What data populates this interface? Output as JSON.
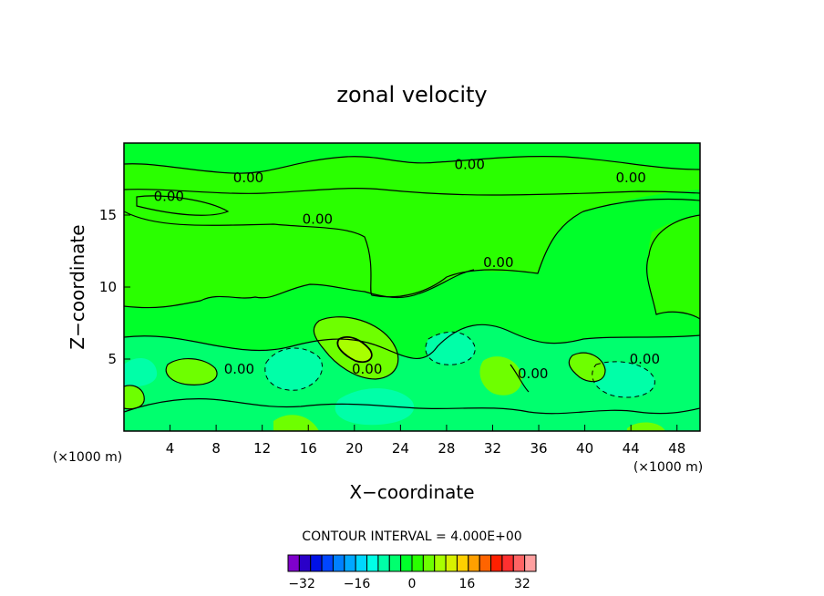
{
  "chart_data": {
    "type": "heatmap",
    "title": "zonal velocity",
    "xlabel": "X−coordinate",
    "ylabel": "Z−coordinate",
    "x_scale_label": "(×1000 m)",
    "y_scale_label": "(×1000 m)",
    "xlim": [
      0,
      50
    ],
    "ylim": [
      0,
      20
    ],
    "x_ticks": [
      4,
      8,
      12,
      16,
      20,
      24,
      28,
      32,
      36,
      40,
      44,
      48
    ],
    "y_ticks": [
      5,
      10,
      15
    ],
    "contour_interval_text": "CONTOUR INTERVAL = 4.000E+00",
    "contour_labels": [
      {
        "text": "0.00",
        "x": 10.8,
        "y": 17.6
      },
      {
        "text": "0.00",
        "x": 3.9,
        "y": 16.3
      },
      {
        "text": "0.00",
        "x": 16.8,
        "y": 14.7
      },
      {
        "text": "0.00",
        "x": 30.0,
        "y": 18.5
      },
      {
        "text": "0.00",
        "x": 44.0,
        "y": 17.6
      },
      {
        "text": "0.00",
        "x": 32.5,
        "y": 11.7
      },
      {
        "text": "0.00",
        "x": 21.1,
        "y": 4.3
      },
      {
        "text": "0.00",
        "x": 10.0,
        "y": 4.3
      },
      {
        "text": "0.00",
        "x": 45.2,
        "y": 5.0
      },
      {
        "text": "0.00",
        "x": 35.5,
        "y": 4.0
      }
    ],
    "colorbar": {
      "min": -36,
      "max": 36,
      "step": 4,
      "tick_values": [
        -32,
        -16,
        0,
        16,
        32
      ],
      "tick_labels": [
        "−32",
        "−16",
        "0",
        "16",
        "32"
      ],
      "colors": [
        "#7f00cc",
        "#2a00c8",
        "#0011e6",
        "#0046ff",
        "#0080ff",
        "#00a8ff",
        "#00d7ff",
        "#00ffe6",
        "#00ffa8",
        "#00ff6e",
        "#00ff2a",
        "#2aff00",
        "#6eff00",
        "#a8ff00",
        "#d8f000",
        "#ffd000",
        "#ffa000",
        "#ff6400",
        "#ff2000",
        "#ff3030",
        "#ff6464",
        "#ffa0a0"
      ]
    },
    "field_colors": {
      "zero_band": "#00ff2a",
      "pos_weak": "#2aff00",
      "pos_mod": "#6eff00",
      "pos_strong": "#a8ff00",
      "neg_weak": "#00ff6e",
      "neg_mod": "#00ffa8"
    }
  }
}
